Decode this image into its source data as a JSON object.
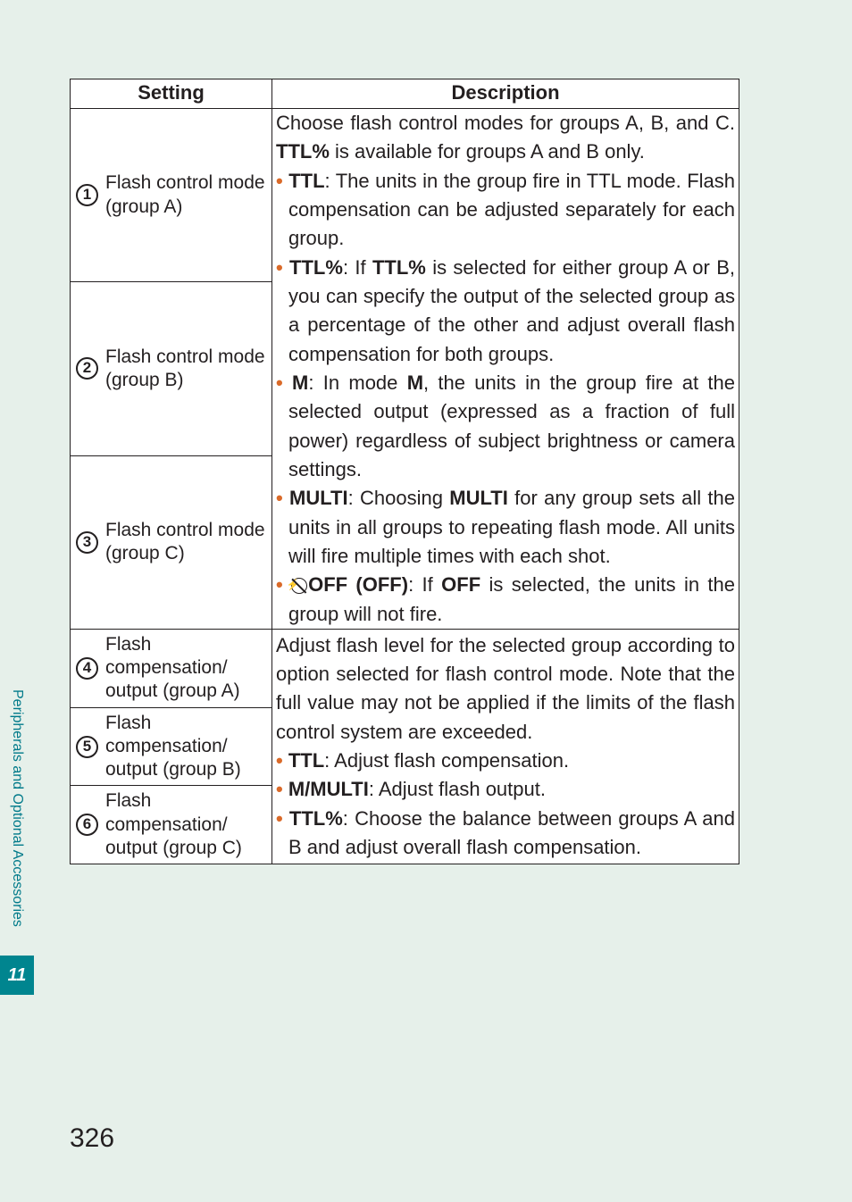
{
  "table": {
    "headers": {
      "setting": "Setting",
      "description": "Description"
    },
    "rows": [
      {
        "num": "1",
        "label_l1": "Flash control mode",
        "label_l2": "(group A)"
      },
      {
        "num": "2",
        "label_l1": "Flash control mode",
        "label_l2": "(group B)"
      },
      {
        "num": "3",
        "label_l1": "Flash control mode",
        "label_l2": "(group C)"
      },
      {
        "num": "4",
        "label_l1": "Flash compensation/",
        "label_l2": "output (group A)"
      },
      {
        "num": "5",
        "label_l1": "Flash compensation/",
        "label_l2": "output (group B)"
      },
      {
        "num": "6",
        "label_l1": "Flash compensation/",
        "label_l2": "output (group C)"
      }
    ],
    "desc1": {
      "intro_a": "Choose flash control modes for groups A, B, and C. ",
      "intro_b": "TTL%",
      "intro_c": " is available for groups A and B only.",
      "ttl_label": "TTL",
      "ttl_text": ": The units in the group fire in TTL mode.  Flash compensation can be adjusted separately for each group.",
      "ttlp_label": "TTL%",
      "ttlp_a": ": If ",
      "ttlp_b": "TTL%",
      "ttlp_c": " is selected for either group A or B, you can specify the output of the selected group as a percentage of the other and adjust overall flash compensation for both groups.",
      "m_label": "M",
      "m_a": ": In mode ",
      "m_b": "M",
      "m_c": ", the units in the group fire at the selected output (expressed as a fraction of full power) regardless of subject brightness or camera settings.",
      "multi_label": "MULTI",
      "multi_a": ": Choosing ",
      "multi_b": "MULTI",
      "multi_c": " for any group sets all the units in all groups to repeating flash mode.  All units will fire multiple times with each shot.",
      "off_label": "OFF (OFF)",
      "off_a": ": If ",
      "off_b": "OFF",
      "off_c": " is selected, the units in the group will not fire."
    },
    "desc2": {
      "intro": "Adjust flash level for the selected group according to option selected for flash control mode. Note that the full value may not be applied if the limits of the flash control system are exceeded.",
      "ttl_label": "TTL",
      "ttl_text": ": Adjust flash compensation.",
      "mm_label": "M/MULTI",
      "mm_text": ": Adjust flash output.",
      "ttlp_label": "TTL%",
      "ttlp_text": ": Choose the balance between groups A and B and adjust overall flash compensation."
    }
  },
  "sidebar": {
    "section": "Peripherals and Optional Accessories",
    "chapter": "11"
  },
  "page_number": "326",
  "colors": {
    "accent": "#da6a29",
    "teal": "#00858f",
    "teal_text": "#007a8a",
    "bg": "#e6f0ea"
  }
}
